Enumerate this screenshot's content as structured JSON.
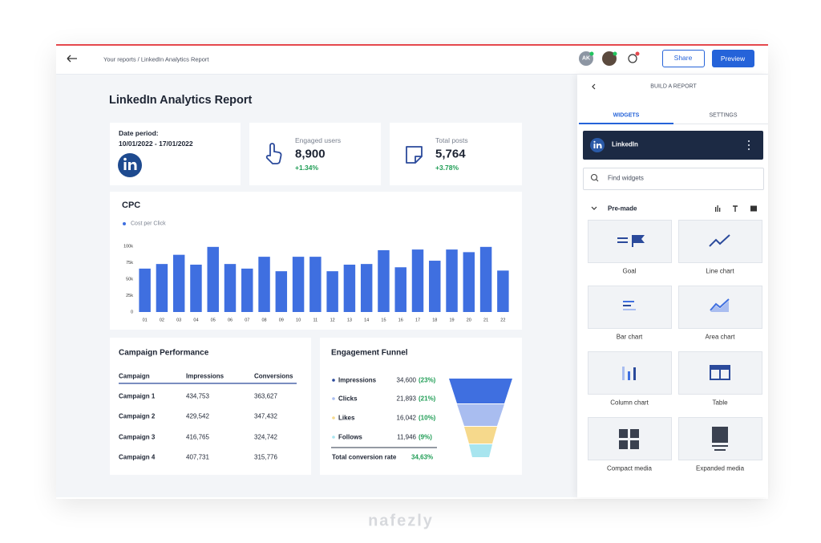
{
  "header": {
    "breadcrumb": "Your reports / LinkedIn Analytics Report",
    "avatar": "AK",
    "share_button": "Share",
    "preview_button": "Preview"
  },
  "report": {
    "title": "LinkedIn Analytics Report",
    "date_label": "Date period:",
    "date_range": "10/01/2022 - 17/01/2022",
    "kpis": [
      {
        "label": "Engaged users",
        "value": "8,900",
        "change": "+1.34%"
      },
      {
        "label": "Total posts",
        "value": "5,764",
        "change": "+3.78%"
      }
    ]
  },
  "chart_data": {
    "type": "bar",
    "title": "CPC",
    "categories": [
      "01",
      "02",
      "03",
      "04",
      "05",
      "06",
      "07",
      "08",
      "09",
      "10",
      "11",
      "12",
      "13",
      "14",
      "15",
      "16",
      "17",
      "18",
      "19",
      "20",
      "21",
      "22"
    ],
    "series": [
      {
        "name": "Cost per Click",
        "color": "#3f6fe0",
        "values": [
          66000,
          73000,
          87000,
          72000,
          99000,
          73000,
          66000,
          84000,
          62000,
          84000,
          84000,
          62000,
          72000,
          73000,
          94000,
          68000,
          95000,
          78000,
          95000,
          91000,
          99000,
          63000
        ]
      }
    ],
    "ylim": [
      0,
      100000
    ],
    "yticks": [
      0,
      {
        "value": 25000,
        "label": "25k"
      },
      {
        "value": 50000,
        "label": "50k"
      },
      {
        "value": 75000,
        "label": "75k"
      },
      {
        "value": 100000,
        "label": "100k"
      }
    ]
  },
  "campaign_table": {
    "title": "Campaign Performance",
    "columns": [
      "Campaign",
      "Impressions",
      "Conversions"
    ],
    "rows": [
      [
        "Campaign 1",
        "434,753",
        "363,627"
      ],
      [
        "Campaign 2",
        "429,542",
        "347,432"
      ],
      [
        "Campaign 3",
        "416,765",
        "324,742"
      ],
      [
        "Campaign 4",
        "407,731",
        "315,776"
      ]
    ]
  },
  "funnel": {
    "title": "Engagement Funnel",
    "stages": [
      {
        "name": "Impressions",
        "value": "34,600",
        "percent": "(23%)"
      },
      {
        "name": "Clicks",
        "value": "21,893",
        "percent": "(21%)"
      },
      {
        "name": "Likes",
        "value": "16,042",
        "percent": "(10%)"
      },
      {
        "name": "Follows",
        "value": "11,946",
        "percent": "(9%)"
      }
    ],
    "total_label": "Total conversion rate",
    "total_value": "34,63%"
  },
  "sidebar": {
    "title": "BUILD A REPORT",
    "tabs": [
      "WIDGETS",
      "SETTINGS"
    ],
    "source": "LinkedIn",
    "search_placeholder": "Find widgets",
    "section": "Pre-made",
    "widgets": [
      "Goal",
      "Line chart",
      "Bar chart",
      "Area chart",
      "Column chart",
      "Table",
      "Compact media",
      "Expanded media"
    ]
  },
  "watermark": "nafezly"
}
